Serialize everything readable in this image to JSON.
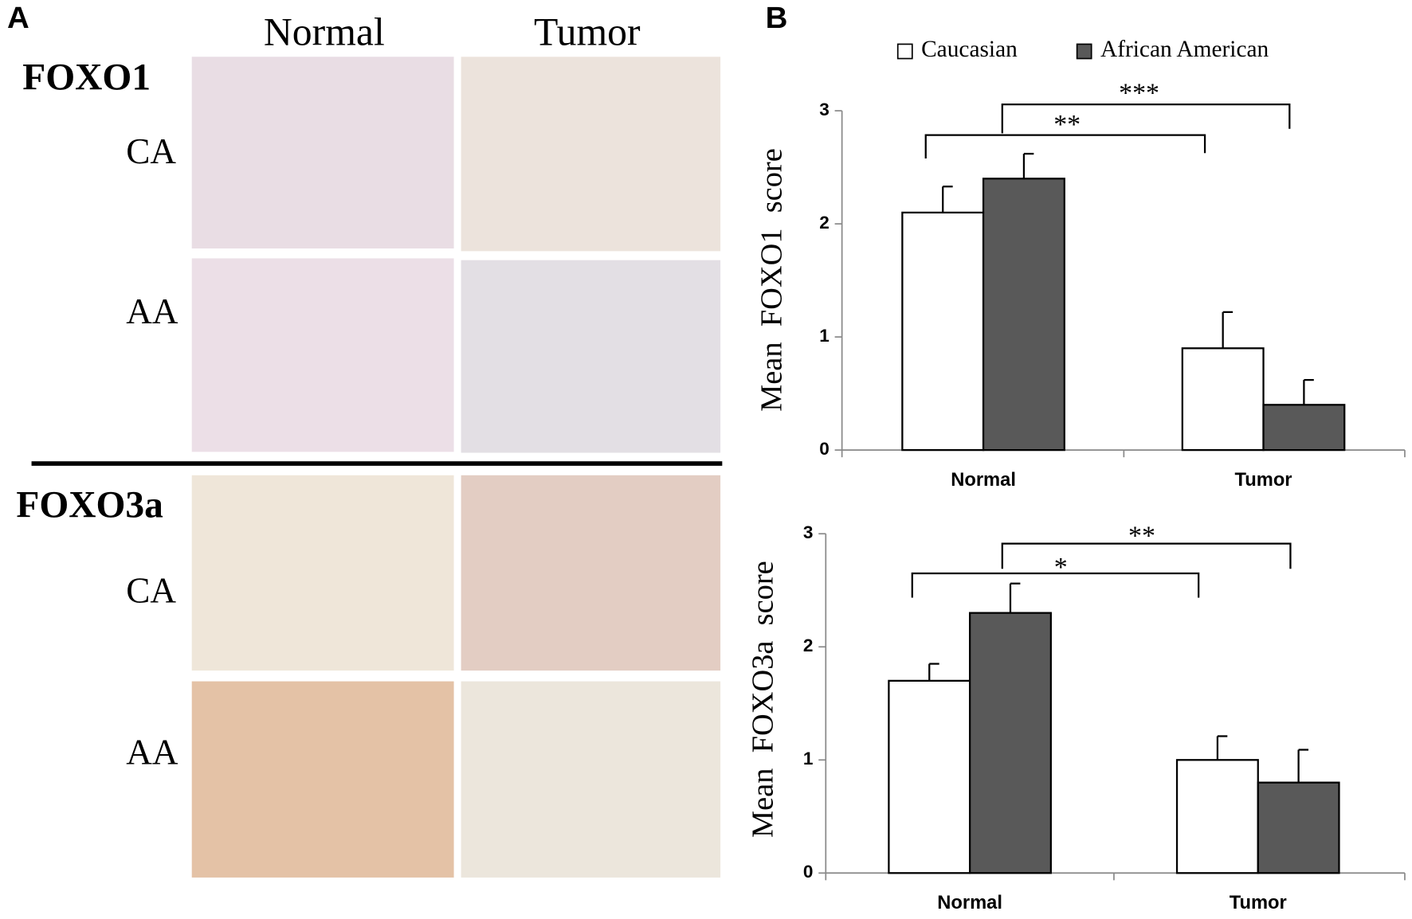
{
  "panel_a": {
    "label": "A",
    "columns": [
      "Normal",
      "Tumor"
    ],
    "groups": [
      {
        "name": "FOXO1",
        "rows": [
          "CA",
          "AA"
        ]
      },
      {
        "name": "FOXO3a",
        "rows": [
          "CA",
          "AA"
        ]
      }
    ]
  },
  "panel_b": {
    "label": "B"
  },
  "chart_data": [
    {
      "type": "bar",
      "y_label": "Mean  FOXO1  score",
      "categories": [
        "Normal",
        "Tumor"
      ],
      "series": [
        {
          "name": "Caucasian",
          "color": "#ffffff",
          "values": [
            2.1,
            0.9
          ],
          "errors": [
            0.23,
            0.32
          ]
        },
        {
          "name": "African American",
          "color": "#595959",
          "values": [
            2.4,
            0.4
          ],
          "errors": [
            0.22,
            0.22
          ]
        }
      ],
      "ylim": [
        0,
        3
      ],
      "yticks": [
        0,
        1,
        2,
        3
      ],
      "annotations": [
        "**",
        "***"
      ]
    },
    {
      "type": "bar",
      "y_label": "Mean  FOXO3a  score",
      "categories": [
        "Normal",
        "Tumor"
      ],
      "series": [
        {
          "name": "Caucasian",
          "color": "#ffffff",
          "values": [
            1.7,
            1.0
          ],
          "errors": [
            0.15,
            0.21
          ]
        },
        {
          "name": "African American",
          "color": "#595959",
          "values": [
            2.3,
            0.8
          ],
          "errors": [
            0.26,
            0.29
          ]
        }
      ],
      "ylim": [
        0,
        3
      ],
      "yticks": [
        0,
        1,
        2,
        3
      ],
      "annotations": [
        "*",
        "**"
      ]
    }
  ]
}
